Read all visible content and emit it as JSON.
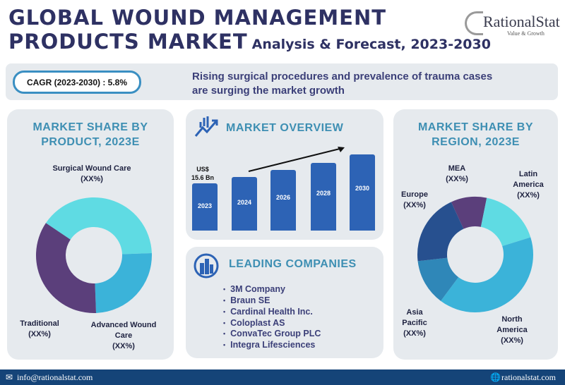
{
  "header": {
    "title_line1": "GLOBAL WOUND MANAGEMENT",
    "title_line2": "PRODUCTS MARKET",
    "subtitle": "Analysis & Forecast, 2023-2030"
  },
  "logo": {
    "name": "RationalStat",
    "tagline": "Value & Growth"
  },
  "band": {
    "cagr": "CAGR (2023-2030) : 5.8%",
    "claim_line1": "Rising surgical procedures and prevalence of trauma cases",
    "claim_line2": "are surging the market growth"
  },
  "product_panel": {
    "title_line1": "MARKET SHARE BY",
    "title_line2": "PRODUCT, 2023E"
  },
  "overview_panel": {
    "title": "MARKET OVERVIEW",
    "value_label_line1": "US$",
    "value_label_line2": "15.6 Bn"
  },
  "companies_panel": {
    "title": "LEADING COMPANIES",
    "items": [
      "3M Company",
      "Braun SE",
      "Cardinal Health Inc.",
      "Coloplast AS",
      "ConvaTec Group PLC",
      "Integra Lifesciences"
    ]
  },
  "region_panel": {
    "title_line1": "MARKET SHARE BY",
    "title_line2": "REGION, 2023E"
  },
  "footer": {
    "email": "info@rationalstat.com",
    "website": "rationalstat.com"
  },
  "chart_data": [
    {
      "type": "pie",
      "title": "MARKET SHARE BY PRODUCT, 2023E",
      "labels": [
        {
          "name": "Surgical Wound Care",
          "value_label": "(XX%)",
          "color": "#5fdbe3",
          "share": 40
        },
        {
          "name": "Advanced Wound Care",
          "value_label": "(XX%)",
          "color": "#3bb3d9",
          "share": 25
        },
        {
          "name": "Traditional",
          "value_label": "(XX%)",
          "color": "#5b3f7b",
          "share": 35
        }
      ]
    },
    {
      "type": "bar",
      "title": "MARKET OVERVIEW",
      "categories": [
        "2023",
        "2024",
        "2026",
        "2028",
        "2030"
      ],
      "values": [
        15.6,
        17.5,
        20,
        22.2,
        25
      ],
      "unit": "US$ Bn (illustrative heights)",
      "color": "#2d63b5"
    },
    {
      "type": "pie",
      "title": "MARKET SHARE BY REGION, 2023E",
      "labels": [
        {
          "name": "MEA",
          "value_label": "(XX%)",
          "color": "#5b3f7b",
          "share": 10
        },
        {
          "name": "Latin America",
          "value_label": "(XX%)",
          "color": "#5fdbe3",
          "share": 17
        },
        {
          "name": "North America",
          "value_label": "(XX%)",
          "color": "#3bb3d9",
          "share": 40
        },
        {
          "name": "Asia Pacific",
          "value_label": "(XX%)",
          "color": "#2f87b8",
          "share": 13
        },
        {
          "name": "Europe",
          "value_label": "(XX%)",
          "color": "#27508f",
          "share": 20
        }
      ]
    }
  ]
}
